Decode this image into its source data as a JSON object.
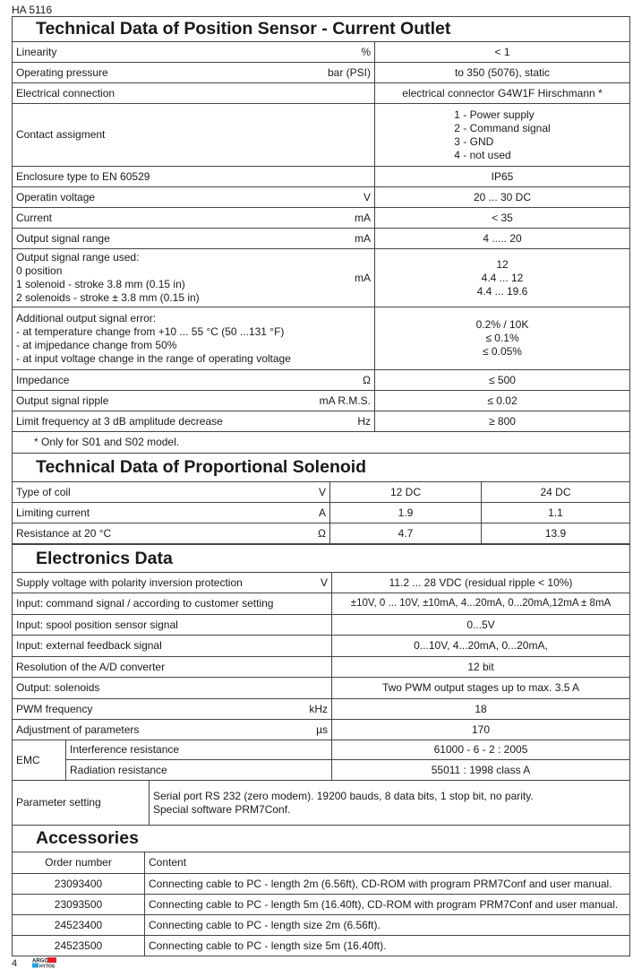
{
  "doc_code": "HA 5116",
  "sensor": {
    "title": "Technical Data of Position Sensor - Current Outlet",
    "rows": [
      {
        "param": [
          "Linearity"
        ],
        "unit": "%",
        "value": [
          "< 1"
        ]
      },
      {
        "param": [
          "Operating pressure"
        ],
        "unit": "bar (PSI)",
        "value": [
          "to 350 (5076), static"
        ]
      },
      {
        "param": [
          "Electrical connection"
        ],
        "unit": "",
        "value": [
          "electrical connector G4W1F Hirschmann *"
        ]
      },
      {
        "param": [
          "Contact assigment"
        ],
        "unit": "",
        "value": [
          "1 - Power supply",
          "2 - Command signal",
          "3 - GND",
          "4 - not used"
        ],
        "list": true
      },
      {
        "param": [
          "Enclosure type to EN 60529"
        ],
        "unit": "",
        "value": [
          "IP65"
        ]
      },
      {
        "param": [
          "Operatin voltage"
        ],
        "unit": "V",
        "value": [
          "20 ... 30 DC"
        ]
      },
      {
        "param": [
          "Current"
        ],
        "unit": "mA",
        "value": [
          "< 35"
        ]
      },
      {
        "param": [
          "Output signal range"
        ],
        "unit": "mA",
        "value": [
          "4 ..... 20"
        ]
      },
      {
        "param": [
          "Output signal range used:",
          "0 position",
          "1 solenoid - stroke 3.8 mm (0.15 in)",
          "2 solenoids - stroke ± 3.8 mm (0.15 in)"
        ],
        "unit": "mA",
        "value": [
          "12",
          "4.4 ... 12",
          "4.4 ... 19.6"
        ],
        "valueOffset": 1
      },
      {
        "param": [
          "Additional output signal error:",
          "- at temperature change from +10 ... 55 °C (50 ...131 °F)",
          "- at imjpedance change from 50%",
          "- at input voltage change in the range of operating voltage"
        ],
        "unit": "",
        "value": [
          "0.2% / 10K",
          "≤ 0.1%",
          "≤ 0.05%"
        ],
        "valueOffset": 1
      },
      {
        "param": [
          "Impedance"
        ],
        "unit": "Ω",
        "value": [
          "≤ 500"
        ]
      },
      {
        "param": [
          "Output signal ripple"
        ],
        "unit": "mA R.M.S.",
        "value": [
          "≤ 0.02"
        ]
      },
      {
        "param": [
          "Limit frequency at 3 dB amplitude decrease"
        ],
        "unit": "Hz",
        "value": [
          "≥ 800"
        ]
      }
    ],
    "note": "*  Only for S01 and S02 model."
  },
  "solenoid": {
    "title": "Technical Data of Proportional Solenoid",
    "rows": [
      {
        "param": "Type of coil",
        "unit": "V",
        "v1": "12 DC",
        "v2": "24 DC"
      },
      {
        "param": "Limiting current",
        "unit": "A",
        "v1": "1.9",
        "v2": "1.1"
      },
      {
        "param": "Resistance at 20 °C",
        "unit": "Ω",
        "v1": "4.7",
        "v2": "13.9"
      }
    ]
  },
  "electronics": {
    "title": "Electronics Data",
    "rows": [
      {
        "param": "Supply voltage with polarity inversion protection",
        "unit": "V",
        "value": "11.2 ... 28 VDC  (residual ripple < 10%)"
      },
      {
        "param": "Input: command signal / according to customer setting",
        "unit": "",
        "value": "±10V, 0 ... 10V, ±10mA, 4...20mA, 0...20mA,12mA ± 8mA"
      },
      {
        "param": "Input: spool position sensor signal",
        "unit": "",
        "value": "0...5V"
      },
      {
        "param": "Input: external feedback signal",
        "unit": "",
        "value": "0...10V, 4...20mA, 0...20mA,"
      },
      {
        "param": "Resolution of the A/D converter",
        "unit": "",
        "value": "12 bit"
      },
      {
        "param": "Output: solenoids",
        "unit": "",
        "value": "Two PWM output stages up to max. 3.5 A"
      },
      {
        "param": "PWM frequency",
        "unit": "kHz",
        "value": "18"
      },
      {
        "param": "Adjustment of parameters",
        "unit": "µs",
        "value": "170"
      }
    ],
    "emc": {
      "label": "EMC",
      "rows": [
        {
          "param": "Interference resistance",
          "value": "61000 - 6 - 2 : 2005"
        },
        {
          "param": "Radiation resistance",
          "value": "55011 : 1998 class A"
        }
      ]
    },
    "parameter_setting": {
      "label": "Parameter setting",
      "lines": [
        "Serial port RS 232 (zero modem). 19200 bauds, 8 data bits, 1 stop bit, no parity.",
        "Special software PRM7Conf."
      ]
    }
  },
  "accessories": {
    "title": "Accessories",
    "headers": [
      "Order number",
      "Content"
    ],
    "rows": [
      [
        "23093400",
        "Connecting cable to PC - length 2m (6.56ft), CD-ROM with program PRM7Conf and user manual."
      ],
      [
        "23093500",
        "Connecting cable to PC - length 5m (16.40ft), CD-ROM with program PRM7Conf and user manual."
      ],
      [
        "24523400",
        "Connecting cable to PC - length size 2m (6.56ft)."
      ],
      [
        "24523500",
        "Connecting cable to PC - length size 5m (16.40ft)."
      ]
    ]
  },
  "footer": {
    "page_number": "4",
    "logo_text": "ARGO HYTOS",
    "logo_colors": {
      "red": "#e4202c",
      "blue": "#1ea0dc"
    }
  }
}
